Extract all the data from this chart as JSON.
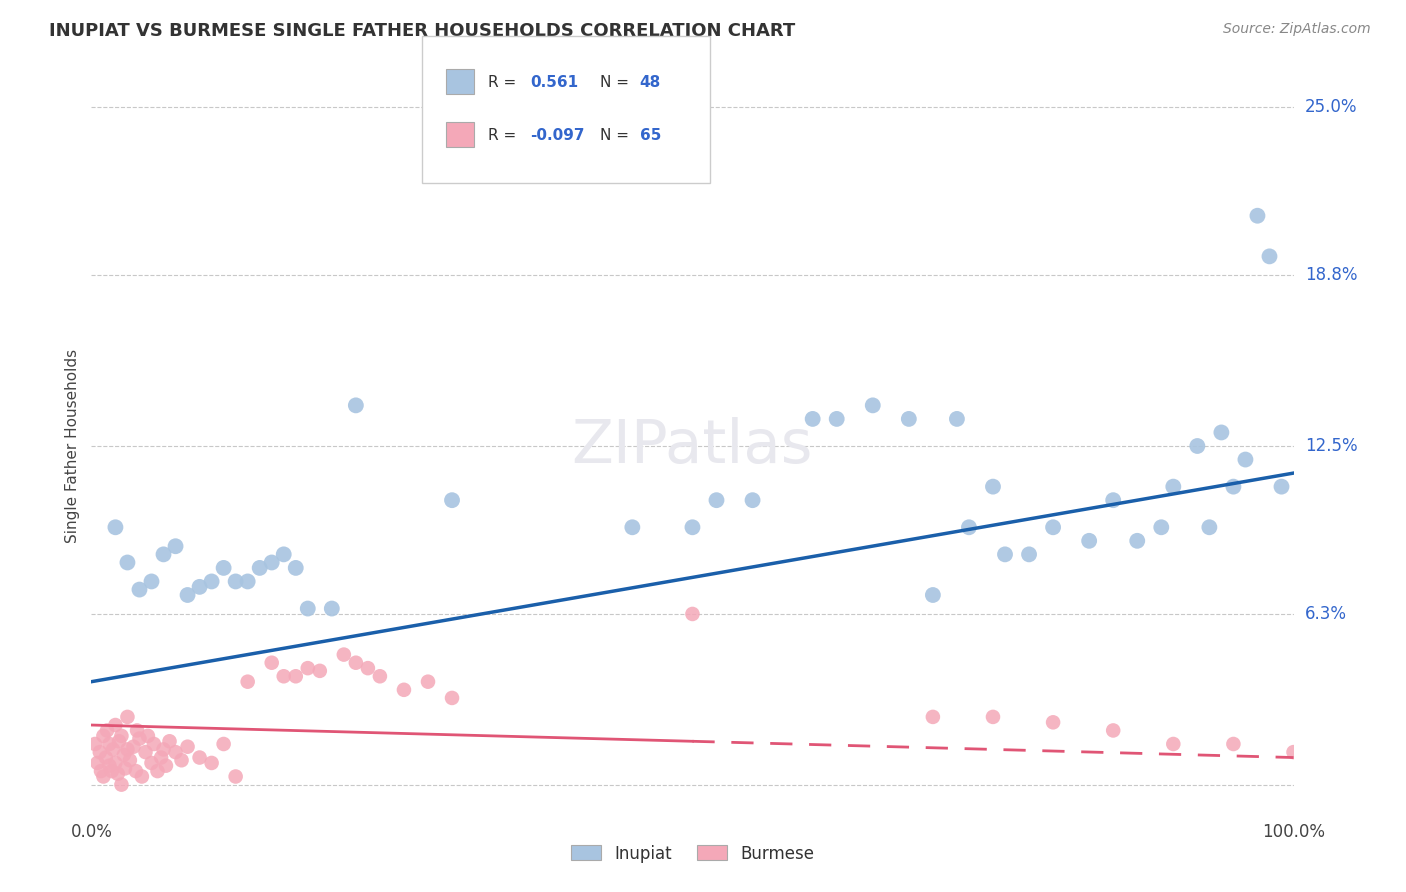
{
  "title": "INUPIAT VS BURMESE SINGLE FATHER HOUSEHOLDS CORRELATION CHART",
  "source": "Source: ZipAtlas.com",
  "ylabel": "Single Father Households",
  "xlim": [
    0,
    100
  ],
  "ylim": [
    -1,
    26
  ],
  "ytick_positions": [
    0,
    6.3,
    12.5,
    18.8,
    25.0
  ],
  "ytick_labels": [
    "6.3%",
    "12.5%",
    "18.8%",
    "25.0%"
  ],
  "xtick_labels": [
    "0.0%",
    "100.0%"
  ],
  "legend_inupiat_R": "0.561",
  "legend_inupiat_N": "48",
  "legend_burmese_R": "-0.097",
  "legend_burmese_N": "65",
  "inupiat_color": "#a8c4e0",
  "burmese_color": "#f4a8b8",
  "inupiat_line_color": "#1a5faa",
  "burmese_line_color": "#e05575",
  "background_color": "#ffffff",
  "grid_color": "#c8c8c8",
  "inupiat_line_y0": 3.8,
  "inupiat_line_y100": 11.5,
  "burmese_line_y0": 2.2,
  "burmese_line_y100": 1.0,
  "inupiat_x": [
    2,
    3,
    4,
    5,
    6,
    7,
    8,
    9,
    10,
    11,
    12,
    13,
    14,
    15,
    16,
    17,
    18,
    20,
    22,
    30,
    45,
    50,
    52,
    55,
    62,
    65,
    70,
    73,
    76,
    78,
    80,
    83,
    85,
    87,
    89,
    90,
    92,
    93,
    94,
    95,
    96,
    97,
    98,
    99,
    75,
    68,
    72,
    60
  ],
  "inupiat_y": [
    9.5,
    8.2,
    7.2,
    7.5,
    8.5,
    8.8,
    7.0,
    7.3,
    7.5,
    8.0,
    7.5,
    7.5,
    8.0,
    8.2,
    8.5,
    8.0,
    6.5,
    6.5,
    14.0,
    10.5,
    9.5,
    9.5,
    10.5,
    10.5,
    13.5,
    14.0,
    7.0,
    9.5,
    8.5,
    8.5,
    9.5,
    9.0,
    10.5,
    9.0,
    9.5,
    11.0,
    12.5,
    9.5,
    13.0,
    11.0,
    12.0,
    21.0,
    19.5,
    11.0,
    11.0,
    13.5,
    13.5,
    13.5
  ],
  "burmese_x": [
    0.3,
    0.5,
    0.7,
    0.8,
    1.0,
    1.0,
    1.2,
    1.3,
    1.5,
    1.5,
    1.7,
    1.8,
    2.0,
    2.0,
    2.2,
    2.3,
    2.5,
    2.5,
    2.7,
    2.8,
    3.0,
    3.0,
    3.2,
    3.5,
    3.7,
    3.8,
    4.0,
    4.2,
    4.5,
    4.7,
    5.0,
    5.2,
    5.5,
    5.8,
    6.0,
    6.2,
    6.5,
    7.0,
    7.5,
    8.0,
    9.0,
    10.0,
    11.0,
    12.0,
    13.0,
    15.0,
    17.0,
    19.0,
    21.0,
    23.0,
    26.0,
    30.0,
    50.0,
    70.0,
    75.0,
    80.0,
    85.0,
    90.0,
    95.0,
    100.0,
    16.0,
    18.0,
    22.0,
    24.0,
    28.0
  ],
  "burmese_y": [
    1.5,
    0.8,
    1.2,
    0.5,
    1.8,
    0.3,
    1.0,
    2.0,
    0.7,
    1.5,
    0.5,
    1.3,
    0.8,
    2.2,
    0.4,
    1.6,
    0.0,
    1.8,
    1.1,
    0.6,
    1.3,
    2.5,
    0.9,
    1.4,
    0.5,
    2.0,
    1.7,
    0.3,
    1.2,
    1.8,
    0.8,
    1.5,
    0.5,
    1.0,
    1.3,
    0.7,
    1.6,
    1.2,
    0.9,
    1.4,
    1.0,
    0.8,
    1.5,
    0.3,
    3.8,
    4.5,
    4.0,
    4.2,
    4.8,
    4.3,
    3.5,
    3.2,
    6.3,
    2.5,
    2.5,
    2.3,
    2.0,
    1.5,
    1.5,
    1.2,
    4.0,
    4.3,
    4.5,
    4.0,
    3.8
  ]
}
